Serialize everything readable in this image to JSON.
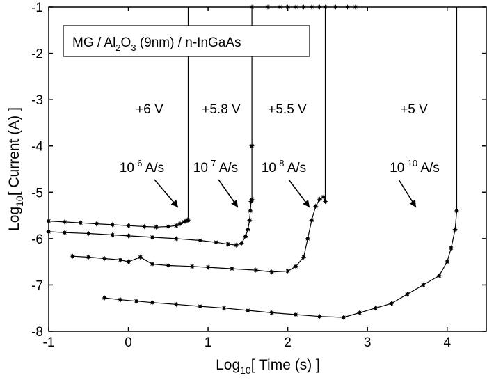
{
  "chart_data": {
    "type": "line",
    "title": "",
    "xlabel": {
      "prefix": "Log",
      "sub": "10",
      "suffix": "[ Time (s) ]"
    },
    "ylabel": {
      "prefix": "Log",
      "sub": "10",
      "suffix": "[ Current (A) ]"
    },
    "xlim": [
      -1,
      4.5
    ],
    "ylim": [
      -8,
      -1
    ],
    "xticks": [
      -1,
      0,
      1,
      2,
      3,
      4
    ],
    "yticks": [
      -8,
      -7,
      -6,
      -5,
      -4,
      -3,
      -2,
      -1
    ],
    "grid": false,
    "legend_box": {
      "parts": [
        {
          "text": "MG / Al",
          "sub": false
        },
        {
          "text": "2",
          "sub": true
        },
        {
          "text": "O",
          "sub": false
        },
        {
          "text": "3",
          "sub": true
        },
        {
          "text": " (9nm) / n-InGaAs",
          "sub": false
        }
      ],
      "placement": "top-left"
    },
    "series": [
      {
        "voltage": "+6 V",
        "ramp": {
          "base": "10",
          "exp": "-6",
          "unit": " A/s"
        },
        "x": [
          -1.0,
          -0.8,
          -0.6,
          -0.4,
          -0.2,
          0.0,
          0.2,
          0.35,
          0.5,
          0.6,
          0.65,
          0.7,
          0.72,
          0.74,
          0.75,
          0.75
        ],
        "y": [
          -5.62,
          -5.64,
          -5.66,
          -5.68,
          -5.7,
          -5.72,
          -5.74,
          -5.75,
          -5.74,
          -5.72,
          -5.68,
          -5.64,
          -5.62,
          -5.6,
          -5.6,
          -1.0
        ]
      },
      {
        "voltage": "+5.8 V",
        "ramp": {
          "base": "10",
          "exp": "-7",
          "unit": " A/s"
        },
        "x": [
          -1.0,
          -0.8,
          -0.5,
          -0.2,
          0.0,
          0.3,
          0.6,
          0.9,
          1.1,
          1.25,
          1.35,
          1.42,
          1.47,
          1.5,
          1.52,
          1.53,
          1.54,
          1.55,
          1.55,
          1.55
        ],
        "y": [
          -5.85,
          -5.87,
          -5.89,
          -5.92,
          -5.94,
          -5.97,
          -6.0,
          -6.04,
          -6.08,
          -6.12,
          -6.14,
          -6.1,
          -5.95,
          -5.8,
          -5.6,
          -5.4,
          -5.2,
          -5.15,
          -4.0,
          -1.0
        ]
      },
      {
        "voltage": "+5.5 V",
        "ramp": {
          "base": "10",
          "exp": "-8",
          "unit": " A/s"
        },
        "x": [
          -0.7,
          -0.5,
          -0.3,
          -0.1,
          0.0,
          0.15,
          0.3,
          0.5,
          0.8,
          1.0,
          1.3,
          1.6,
          1.8,
          2.0,
          2.1,
          2.2,
          2.25,
          2.3,
          2.35,
          2.4,
          2.45,
          2.47,
          2.47
        ],
        "y": [
          -6.38,
          -6.4,
          -6.43,
          -6.46,
          -6.5,
          -6.4,
          -6.55,
          -6.58,
          -6.6,
          -6.62,
          -6.65,
          -6.68,
          -6.72,
          -6.7,
          -6.6,
          -6.4,
          -6.0,
          -5.6,
          -5.3,
          -5.15,
          -5.1,
          -5.2,
          -1.0
        ]
      },
      {
        "voltage": "+5 V",
        "ramp": {
          "base": "10",
          "exp": "-10",
          "unit": " A/s"
        },
        "x": [
          -0.3,
          -0.1,
          0.1,
          0.3,
          0.6,
          0.9,
          1.2,
          1.5,
          1.8,
          2.1,
          2.4,
          2.7,
          2.9,
          3.1,
          3.3,
          3.5,
          3.7,
          3.9,
          4.0,
          4.05,
          4.1,
          4.12,
          4.12
        ],
        "y": [
          -7.28,
          -7.32,
          -7.35,
          -7.38,
          -7.42,
          -7.46,
          -7.5,
          -7.55,
          -7.6,
          -7.64,
          -7.68,
          -7.7,
          -7.6,
          -7.5,
          -7.4,
          -7.2,
          -7.0,
          -6.8,
          -6.5,
          -6.2,
          -5.8,
          -5.4,
          -1.0
        ]
      }
    ],
    "top_markers_x": [
      1.55,
      1.75,
      1.9,
      2.0,
      2.1,
      2.2,
      2.3,
      2.4,
      2.47,
      2.6,
      2.75,
      2.85
    ]
  }
}
